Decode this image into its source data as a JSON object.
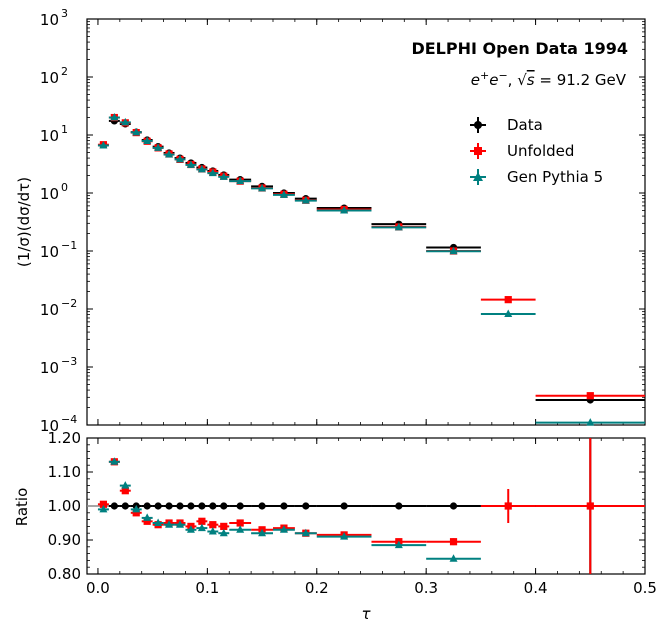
{
  "chart_data": [
    {
      "type": "scatter",
      "panel": "main",
      "title": "",
      "annotation": "DELPHI Open Data 1994",
      "subannotation_parts": [
        "e",
        "+",
        "e",
        "−",
        ", ",
        "√",
        "s",
        " = 91.2 GeV"
      ],
      "xlabel": "",
      "ylabel": "(1/σ)(dσ/dτ)",
      "yscale": "log",
      "xlim": [
        -0.01,
        0.5
      ],
      "ylim": [
        0.0001,
        1000
      ],
      "ytick_labels": [
        "10",
        "10",
        "10",
        "10",
        "10",
        "10",
        "10",
        "10"
      ],
      "ytick_exponents": [
        "−4",
        "−3",
        "−2",
        "−1",
        "0",
        "1",
        "2",
        "3"
      ],
      "grid": false,
      "legend_position": "upper-right",
      "bin_edges": [
        0.0,
        0.01,
        0.02,
        0.03,
        0.04,
        0.05,
        0.06,
        0.07,
        0.08,
        0.09,
        0.1,
        0.11,
        0.12,
        0.14,
        0.16,
        0.18,
        0.2,
        0.25,
        0.3,
        0.35,
        0.4,
        0.5
      ],
      "series": [
        {
          "name": "Data",
          "color": "#000000",
          "marker": "circle",
          "values": [
            null,
            17.5,
            15.5,
            11.2,
            8.2,
            6.3,
            4.9,
            4.0,
            3.3,
            2.75,
            2.4,
            2.05,
            1.7,
            1.3,
            1.0,
            0.8,
            0.55,
            0.29,
            0.115,
            null,
            0.00027
          ]
        },
        {
          "name": "Unfolded",
          "color": "#ff0000",
          "marker": "square",
          "values": [
            6.8,
            20.0,
            16.2,
            11.0,
            7.8,
            6.0,
            4.7,
            3.8,
            3.1,
            2.6,
            2.3,
            1.95,
            1.6,
            1.22,
            0.95,
            0.75,
            0.52,
            0.26,
            0.1,
            0.0145,
            0.00032
          ]
        },
        {
          "name": "Gen Pythia 5",
          "color": "#008080",
          "marker": "triangle",
          "values": [
            6.6,
            20.0,
            16.5,
            11.1,
            7.9,
            6.0,
            4.6,
            3.8,
            3.05,
            2.55,
            2.2,
            1.9,
            1.6,
            1.2,
            0.93,
            0.74,
            0.5,
            0.255,
            0.099,
            0.0082,
            0.00011
          ]
        }
      ]
    },
    {
      "type": "scatter",
      "panel": "ratio",
      "xlabel": "τ",
      "ylabel": "Ratio",
      "xlim": [
        -0.01,
        0.5
      ],
      "ylim": [
        0.8,
        1.2
      ],
      "xticks": [
        0.0,
        0.1,
        0.2,
        0.3,
        0.4,
        0.5
      ],
      "xtick_labels": [
        "0.0",
        "0.1",
        "0.2",
        "0.3",
        "0.4",
        "0.5"
      ],
      "yticks": [
        0.8,
        0.9,
        1.0,
        1.1,
        1.2
      ],
      "ytick_labels": [
        "0.80",
        "0.90",
        "1.00",
        "1.10",
        "1.20"
      ],
      "reference_line": 1.0,
      "grid": false,
      "bin_edges": [
        0.0,
        0.01,
        0.02,
        0.03,
        0.04,
        0.05,
        0.06,
        0.07,
        0.08,
        0.09,
        0.1,
        0.11,
        0.12,
        0.14,
        0.16,
        0.18,
        0.2,
        0.25,
        0.3,
        0.35,
        0.4,
        0.5
      ],
      "series": [
        {
          "name": "Data",
          "color": "#000000",
          "marker": "circle",
          "values": [
            null,
            1.0,
            1.0,
            1.0,
            1.0,
            1.0,
            1.0,
            1.0,
            1.0,
            1.0,
            1.0,
            1.0,
            1.0,
            1.0,
            1.0,
            1.0,
            1.0,
            1.0,
            1.0,
            null,
            1.0
          ],
          "errors": [
            null,
            0,
            0,
            0,
            0,
            0,
            0,
            0,
            0,
            0,
            0,
            0,
            0,
            0,
            0,
            0,
            0,
            0,
            0.01,
            null,
            0.6
          ]
        },
        {
          "name": "Unfolded",
          "color": "#ff0000",
          "marker": "square",
          "values": [
            1.005,
            1.13,
            1.045,
            0.98,
            0.955,
            0.945,
            0.95,
            0.95,
            0.94,
            0.955,
            0.945,
            0.94,
            0.95,
            0.93,
            0.935,
            0.92,
            0.915,
            0.895,
            0.895,
            1.0,
            1.0
          ],
          "errors": [
            0.005,
            0.005,
            0.005,
            0.005,
            0.005,
            0.005,
            0.005,
            0.005,
            0.005,
            0.005,
            0.005,
            0.005,
            0.005,
            0.005,
            0.005,
            0.005,
            0.005,
            0.005,
            0.01,
            0.05,
            0.4
          ]
        },
        {
          "name": "Gen Pythia 5",
          "color": "#008080",
          "marker": "triangle",
          "values": [
            0.99,
            1.13,
            1.06,
            0.99,
            0.965,
            0.95,
            0.945,
            0.945,
            0.93,
            0.935,
            0.925,
            0.92,
            0.93,
            0.92,
            0.93,
            0.92,
            0.91,
            0.885,
            0.845,
            null,
            null
          ],
          "errors": [
            0,
            0,
            0,
            0,
            0,
            0,
            0,
            0,
            0,
            0,
            0,
            0,
            0,
            0,
            0,
            0,
            0,
            0,
            0,
            null,
            null
          ]
        }
      ]
    }
  ]
}
